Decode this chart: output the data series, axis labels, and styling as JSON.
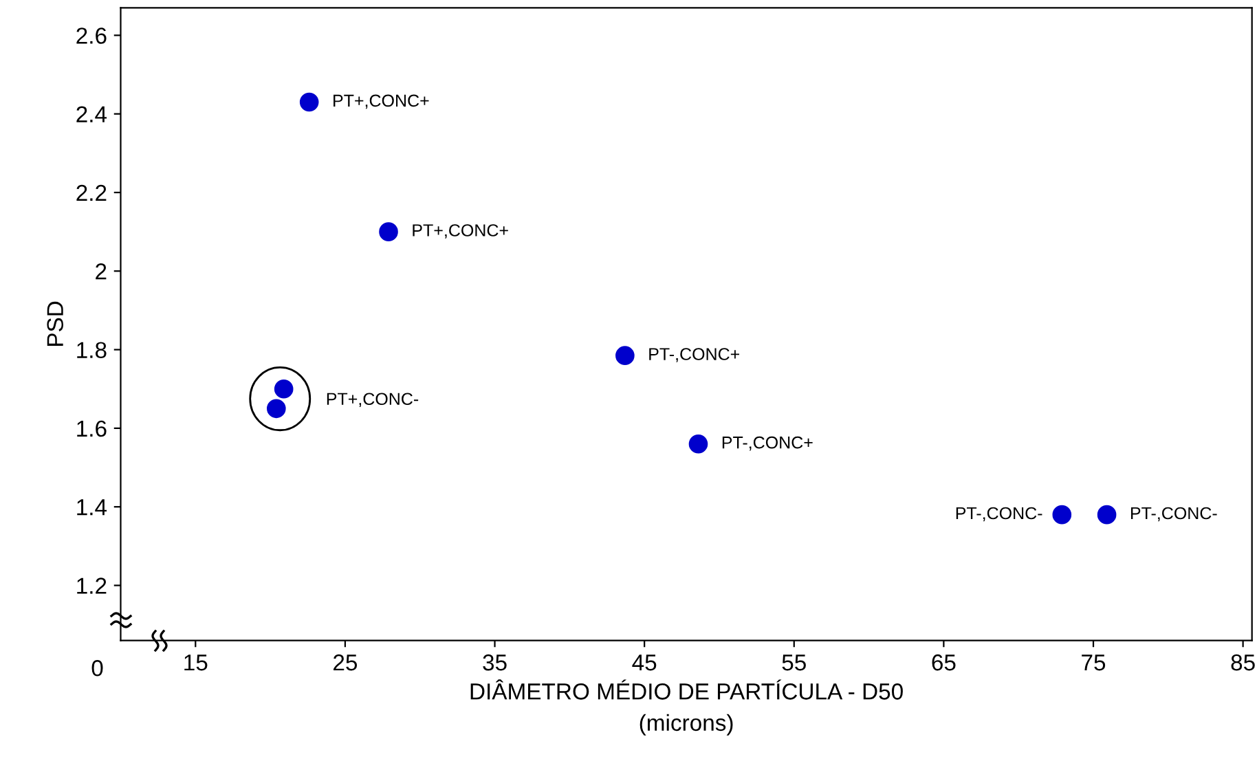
{
  "chart_data": {
    "type": "scatter",
    "xlabel": "DIÂMETRO MÉDIO DE PARTÍCULA - D50\n(microns)",
    "ylabel": "PSD",
    "x": [
      22.6,
      27.9,
      20.9,
      20.4,
      43.7,
      48.6,
      72.9,
      75.9
    ],
    "series": [
      {
        "color": "#0000cc",
        "values": [
          2.43,
          2.1,
          1.7,
          1.65,
          1.785,
          1.56,
          1.38,
          1.38
        ]
      }
    ],
    "marker": "circle",
    "grid": false,
    "legend": false,
    "xlim": [
      10,
      85.6
    ],
    "ylim": [
      1.06,
      2.67
    ],
    "xticks": [
      15,
      25,
      35,
      45,
      55,
      65,
      75,
      85
    ],
    "yticks": [
      1.2,
      1.4,
      1.6,
      1.8,
      2,
      2.2,
      2.4,
      2.6
    ],
    "annotations": [
      "0",
      {
        "text": "PT+,CONC+",
        "x": 22.6,
        "y": 2.43
      },
      {
        "text": "PT+,CONC+",
        "x": 27.9,
        "y": 2.1
      },
      {
        "text": "PT+,CONC-",
        "x": 20.9,
        "y": 1.7
      },
      {
        "text": "PT-,CONC+",
        "x": 43.7,
        "y": 1.785
      },
      {
        "text": "PT-,CONC+",
        "x": 48.6,
        "y": 1.56
      },
      {
        "text": "PT-,CONC-",
        "x": 72.9,
        "y": 1.38
      },
      {
        "text": "PT-,CONC-",
        "x": 75.9,
        "y": 1.38
      }
    ]
  }
}
